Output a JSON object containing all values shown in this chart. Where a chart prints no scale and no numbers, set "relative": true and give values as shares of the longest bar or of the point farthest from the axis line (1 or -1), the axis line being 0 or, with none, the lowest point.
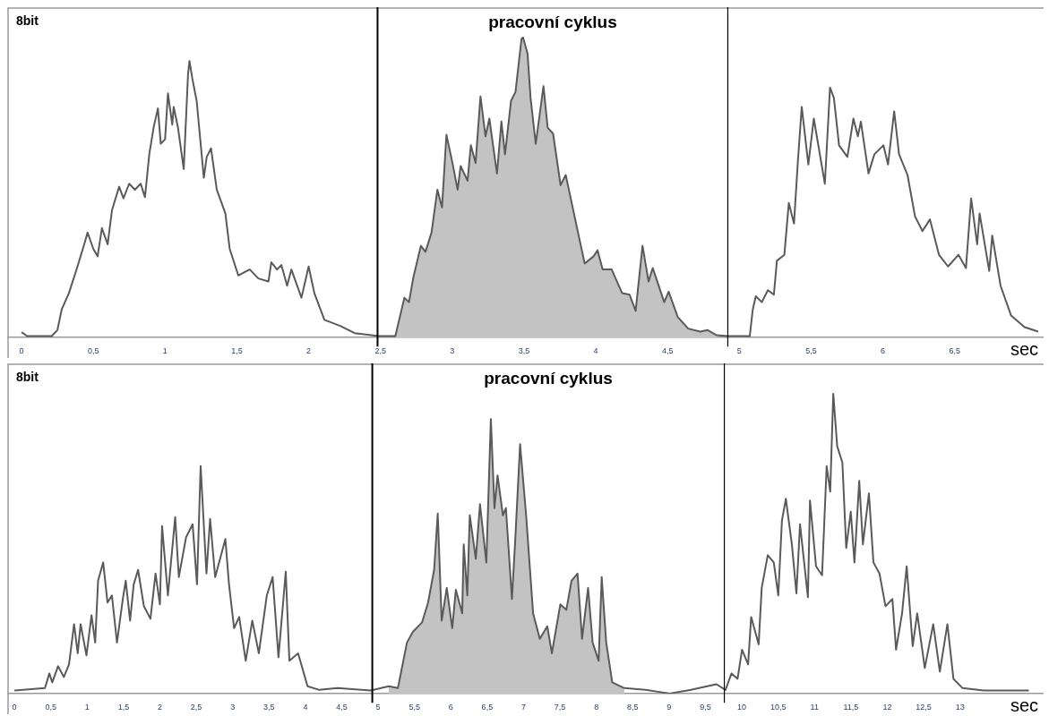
{
  "chart_data": [
    {
      "type": "line",
      "ylabel": "8bit",
      "xlabel": "sec",
      "relative": true,
      "grid": false,
      "legend": false,
      "marker": "none",
      "xlim": [
        -0.1,
        7.12
      ],
      "xticks": [
        0,
        {
          "value": 0.5,
          "label": "0,5"
        },
        1,
        {
          "value": 1.5,
          "label": "1,5"
        },
        2,
        {
          "value": 2.5,
          "label": "2,5"
        },
        3,
        {
          "value": 3.5,
          "label": "3,5"
        },
        4,
        {
          "value": 4.5,
          "label": "4,5"
        },
        5,
        {
          "value": 5.5,
          "label": "5,5"
        },
        6,
        {
          "value": 6.5,
          "label": "6,5"
        }
      ],
      "ref_lines": [
        {
          "axis": "x",
          "value": 2.48,
          "color": "#000000"
        },
        {
          "axis": "x",
          "value": 4.92,
          "color": "#000000"
        }
      ],
      "annotations": [
        "pracovní cyklus"
      ],
      "series": [
        {
          "type": "area",
          "color": "#c3c3c3",
          "x": [
            2.604,
            2.667,
            2.699,
            2.73,
            2.782,
            2.814,
            2.856,
            2.897,
            2.929,
            2.96,
            3.002,
            3.038,
            3.059,
            3.107,
            3.13,
            3.163,
            3.197,
            3.232,
            3.259,
            3.312,
            3.343,
            3.368,
            3.41,
            3.441,
            3.483,
            3.494,
            3.525,
            3.546,
            3.582,
            3.636,
            3.665,
            3.703,
            3.755,
            3.791,
            3.87,
            3.923,
            3.985,
            4.013,
            4.048,
            4.111,
            4.184,
            4.236,
            4.278,
            4.326,
            4.368,
            4.397,
            4.477,
            4.508,
            4.571,
            4.644,
            4.728,
            4.78,
            4.843
          ],
          "values": [
            0.005,
            0.133,
            0.118,
            0.202,
            0.306,
            0.286,
            0.35,
            0.493,
            0.434,
            0.676,
            0.582,
            0.493,
            0.572,
            0.523,
            0.641,
            0.582,
            0.804,
            0.671,
            0.73,
            0.547,
            0.72,
            0.611,
            0.789,
            0.819,
            0.996,
            1,
            0.947,
            0.799,
            0.646,
            0.838,
            0.7,
            0.68,
            0.508,
            0.542,
            0.365,
            0.247,
            0.271,
            0.291,
            0.227,
            0.227,
            0.148,
            0.143,
            0.089,
            0.306,
            0.187,
            0.232,
            0.118,
            0.153,
            0.069,
            0.03,
            0.02,
            0.025,
            0.008
          ]
        },
        {
          "color": "#5a5a5a",
          "x": [
            0,
            0.04,
            0.21,
            0.25,
            0.28,
            0.33,
            0.39,
            0.44,
            0.46,
            0.5,
            0.53,
            0.56,
            0.6,
            0.63,
            0.68,
            0.71,
            0.75,
            0.79,
            0.83,
            0.86,
            0.89,
            0.92,
            0.95,
            0.97,
            1.0,
            1.02,
            1.05,
            1.06,
            1.09,
            1.13,
            1.16,
            1.17,
            1.19,
            1.22,
            1.27,
            1.29,
            1.32,
            1.36,
            1.42,
            1.45,
            1.51,
            1.55,
            1.59,
            1.65,
            1.72,
            1.74,
            1.78,
            1.81,
            1.85,
            1.88,
            1.95,
            2.0,
            2.04,
            2.11,
            2.22,
            2.32,
            2.49,
            2.604,
            2.667,
            2.699,
            2.73,
            2.782,
            2.814,
            2.856,
            2.897,
            2.929,
            2.96,
            3.002,
            3.038,
            3.059,
            3.107,
            3.13,
            3.163,
            3.197,
            3.232,
            3.259,
            3.312,
            3.343,
            3.368,
            3.41,
            3.441,
            3.483,
            3.494,
            3.525,
            3.546,
            3.582,
            3.636,
            3.665,
            3.703,
            3.755,
            3.791,
            3.87,
            3.923,
            3.985,
            4.013,
            4.048,
            4.111,
            4.184,
            4.236,
            4.278,
            4.326,
            4.368,
            4.397,
            4.477,
            4.508,
            4.571,
            4.644,
            4.728,
            4.78,
            4.843,
            4.916,
            5.073,
            5.094,
            5.115,
            5.157,
            5.199,
            5.241,
            5.262,
            5.314,
            5.345,
            5.381,
            5.408,
            5.435,
            5.481,
            5.519,
            5.596,
            5.632,
            5.659,
            5.695,
            5.753,
            5.795,
            5.826,
            5.847,
            5.9,
            5.941,
            6.004,
            6.036,
            6.079,
            6.113,
            6.172,
            6.224,
            6.276,
            6.328,
            6.391,
            6.454,
            6.527,
            6.579,
            6.615,
            6.657,
            6.674,
            6.741,
            6.762,
            6.82,
            6.893,
            6.987,
            7.082
          ],
          "values": [
            0.018,
            0.005,
            0.005,
            0.025,
            0.094,
            0.148,
            0.237,
            0.316,
            0.35,
            0.296,
            0.271,
            0.365,
            0.311,
            0.424,
            0.503,
            0.464,
            0.513,
            0.493,
            0.513,
            0.468,
            0.611,
            0.7,
            0.764,
            0.646,
            0.661,
            0.814,
            0.71,
            0.769,
            0.7,
            0.562,
            0.878,
            0.922,
            0.863,
            0.789,
            0.533,
            0.602,
            0.631,
            0.493,
            0.414,
            0.296,
            0.207,
            0.217,
            0.227,
            0.197,
            0.187,
            0.251,
            0.227,
            0.242,
            0.173,
            0.227,
            0.133,
            0.237,
            0.148,
            0.059,
            0.039,
            0.015,
            0.005,
            0.005,
            0.133,
            0.118,
            0.202,
            0.306,
            0.286,
            0.35,
            0.493,
            0.434,
            0.676,
            0.582,
            0.493,
            0.572,
            0.523,
            0.641,
            0.582,
            0.804,
            0.671,
            0.73,
            0.547,
            0.72,
            0.611,
            0.789,
            0.819,
            0.996,
            1,
            0.947,
            0.799,
            0.646,
            0.838,
            0.7,
            0.68,
            0.508,
            0.542,
            0.365,
            0.247,
            0.271,
            0.291,
            0.227,
            0.227,
            0.148,
            0.143,
            0.089,
            0.306,
            0.187,
            0.232,
            0.118,
            0.153,
            0.069,
            0.03,
            0.02,
            0.025,
            0.008,
            0.005,
            0.005,
            0.094,
            0.138,
            0.118,
            0.158,
            0.143,
            0.256,
            0.276,
            0.449,
            0.38,
            0.587,
            0.769,
            0.577,
            0.73,
            0.513,
            0.833,
            0.799,
            0.641,
            0.602,
            0.73,
            0.671,
            0.72,
            0.547,
            0.611,
            0.641,
            0.577,
            0.754,
            0.611,
            0.542,
            0.404,
            0.355,
            0.394,
            0.276,
            0.237,
            0.276,
            0.232,
            0.464,
            0.311,
            0.414,
            0.222,
            0.34,
            0.173,
            0.074,
            0.035,
            0.02
          ]
        }
      ]
    },
    {
      "type": "line",
      "ylabel": "8bit",
      "xlabel": "sec",
      "relative": true,
      "grid": false,
      "legend": false,
      "marker": "none",
      "xlim": [
        -0.1,
        14.15
      ],
      "xticks": [
        0,
        {
          "value": 0.5,
          "label": "0,5"
        },
        1,
        {
          "value": 1.5,
          "label": "1,5"
        },
        2,
        {
          "value": 2.5,
          "label": "2,5"
        },
        3,
        {
          "value": 3.5,
          "label": "3,5"
        },
        4,
        {
          "value": 4.5,
          "label": "4,5"
        },
        5,
        {
          "value": 5.5,
          "label": "5,5"
        },
        6,
        {
          "value": 6.5,
          "label": "6,5"
        },
        7,
        {
          "value": 7.5,
          "label": "7,5"
        },
        8,
        {
          "value": 8.5,
          "label": "8,5"
        },
        9,
        {
          "value": 9.5,
          "label": "9,5"
        },
        10,
        {
          "value": 10.5,
          "label": "10,5"
        },
        11,
        {
          "value": 11.5,
          "label": "11,5"
        },
        12,
        {
          "value": 12.5,
          "label": "12,5"
        },
        13
      ],
      "ref_lines": [
        {
          "axis": "x",
          "value": 4.92,
          "color": "#000000"
        },
        {
          "axis": "x",
          "value": 9.76,
          "color": "#000000"
        }
      ],
      "annotations": [
        "pracovní cyklus"
      ],
      "series": [
        {
          "type": "area",
          "color": "#c3c3c3",
          "x": [
            5.147,
            5.272,
            5.397,
            5.48,
            5.604,
            5.687,
            5.77,
            5.82,
            5.874,
            5.944,
            6.019,
            6.069,
            6.156,
            6.177,
            6.226,
            6.26,
            6.343,
            6.401,
            6.488,
            6.55,
            6.6,
            6.642,
            6.716,
            6.757,
            6.84,
            6.882,
            6.952,
            7.035,
            7.131,
            7.223,
            7.326,
            7.389,
            7.505,
            7.588,
            7.659,
            7.742,
            7.804,
            7.887,
            7.949,
            8.032,
            8.074,
            8.136,
            8.219,
            8.385
          ],
          "values": [
            0.025,
            0.019,
            0.171,
            0.207,
            0.238,
            0.304,
            0.413,
            0.601,
            0.244,
            0.353,
            0.219,
            0.347,
            0.268,
            0.498,
            0.328,
            0.595,
            0.45,
            0.632,
            0.438,
            0.916,
            0.619,
            0.728,
            0.595,
            0.619,
            0.316,
            0.498,
            0.832,
            0.595,
            0.268,
            0.183,
            0.225,
            0.135,
            0.298,
            0.28,
            0.377,
            0.401,
            0.183,
            0.353,
            0.171,
            0.11,
            0.389,
            0.171,
            0.038,
            0.019
          ]
        },
        {
          "color": "#5a5a5a",
          "x": [
            0,
            0.42,
            0.48,
            0.52,
            0.6,
            0.68,
            0.75,
            0.82,
            0.87,
            0.91,
            0.99,
            1.06,
            1.11,
            1.15,
            1.22,
            1.28,
            1.34,
            1.41,
            1.49,
            1.53,
            1.59,
            1.64,
            1.7,
            1.78,
            1.87,
            1.94,
            2.0,
            2.03,
            2.11,
            2.21,
            2.26,
            2.36,
            2.45,
            2.51,
            2.56,
            2.64,
            2.69,
            2.76,
            2.9,
            2.95,
            3.02,
            3.09,
            3.18,
            3.27,
            3.36,
            3.47,
            3.55,
            3.63,
            3.73,
            3.78,
            3.9,
            4.03,
            4.19,
            4.44,
            4.9,
            5.147,
            5.272,
            5.397,
            5.48,
            5.604,
            5.687,
            5.77,
            5.82,
            5.874,
            5.944,
            6.019,
            6.069,
            6.156,
            6.177,
            6.226,
            6.26,
            6.343,
            6.401,
            6.488,
            6.55,
            6.6,
            6.642,
            6.716,
            6.757,
            6.84,
            6.882,
            6.952,
            7.035,
            7.131,
            7.223,
            7.326,
            7.389,
            7.505,
            7.588,
            7.659,
            7.742,
            7.804,
            7.887,
            7.949,
            8.032,
            8.074,
            8.136,
            8.219,
            8.385,
            8.676,
            9.008,
            9.299,
            9.652,
            9.776,
            9.859,
            9.942,
            10.004,
            10.087,
            10.129,
            10.232,
            10.274,
            10.357,
            10.44,
            10.502,
            10.552,
            10.606,
            10.689,
            10.751,
            10.801,
            10.909,
            10.938,
            11.021,
            11.104,
            11.167,
            11.216,
            11.258,
            11.312,
            11.383,
            11.436,
            11.499,
            11.549,
            11.615,
            11.665,
            11.748,
            11.81,
            11.893,
            11.976,
            12.071,
            12.121,
            12.204,
            12.267,
            12.35,
            12.412,
            12.516,
            12.632,
            12.723,
            12.827,
            12.91,
            13.035,
            13.325,
            13.947
          ],
          "values": [
            0.011,
            0.019,
            0.068,
            0.038,
            0.092,
            0.056,
            0.098,
            0.232,
            0.135,
            0.232,
            0.128,
            0.262,
            0.171,
            0.377,
            0.438,
            0.304,
            0.328,
            0.171,
            0.316,
            0.377,
            0.244,
            0.365,
            0.413,
            0.292,
            0.25,
            0.401,
            0.298,
            0.559,
            0.328,
            0.589,
            0.389,
            0.522,
            0.565,
            0.365,
            0.759,
            0.401,
            0.583,
            0.389,
            0.516,
            0.365,
            0.219,
            0.256,
            0.11,
            0.244,
            0.135,
            0.328,
            0.389,
            0.122,
            0.407,
            0.11,
            0.135,
            0.025,
            0.013,
            0.019,
            0.011,
            0.025,
            0.019,
            0.171,
            0.207,
            0.238,
            0.304,
            0.413,
            0.601,
            0.244,
            0.353,
            0.219,
            0.347,
            0.268,
            0.498,
            0.328,
            0.595,
            0.45,
            0.632,
            0.438,
            0.916,
            0.619,
            0.728,
            0.595,
            0.619,
            0.316,
            0.498,
            0.832,
            0.595,
            0.268,
            0.183,
            0.225,
            0.135,
            0.298,
            0.28,
            0.377,
            0.401,
            0.183,
            0.353,
            0.171,
            0.11,
            0.389,
            0.171,
            0.038,
            0.019,
            0.013,
            0.001,
            0.013,
            0.032,
            0.013,
            0.068,
            0.05,
            0.147,
            0.098,
            0.256,
            0.165,
            0.353,
            0.462,
            0.438,
            0.328,
            0.577,
            0.65,
            0.498,
            0.335,
            0.565,
            0.322,
            0.644,
            0.425,
            0.395,
            0.759,
            0.674,
            1,
            0.825,
            0.771,
            0.486,
            0.607,
            0.438,
            0.71,
            0.498,
            0.668,
            0.438,
            0.401,
            0.292,
            0.316,
            0.147,
            0.268,
            0.425,
            0.159,
            0.268,
            0.086,
            0.232,
            0.074,
            0.232,
            0.05,
            0.019,
            0.011,
            0.011
          ]
        }
      ]
    }
  ]
}
